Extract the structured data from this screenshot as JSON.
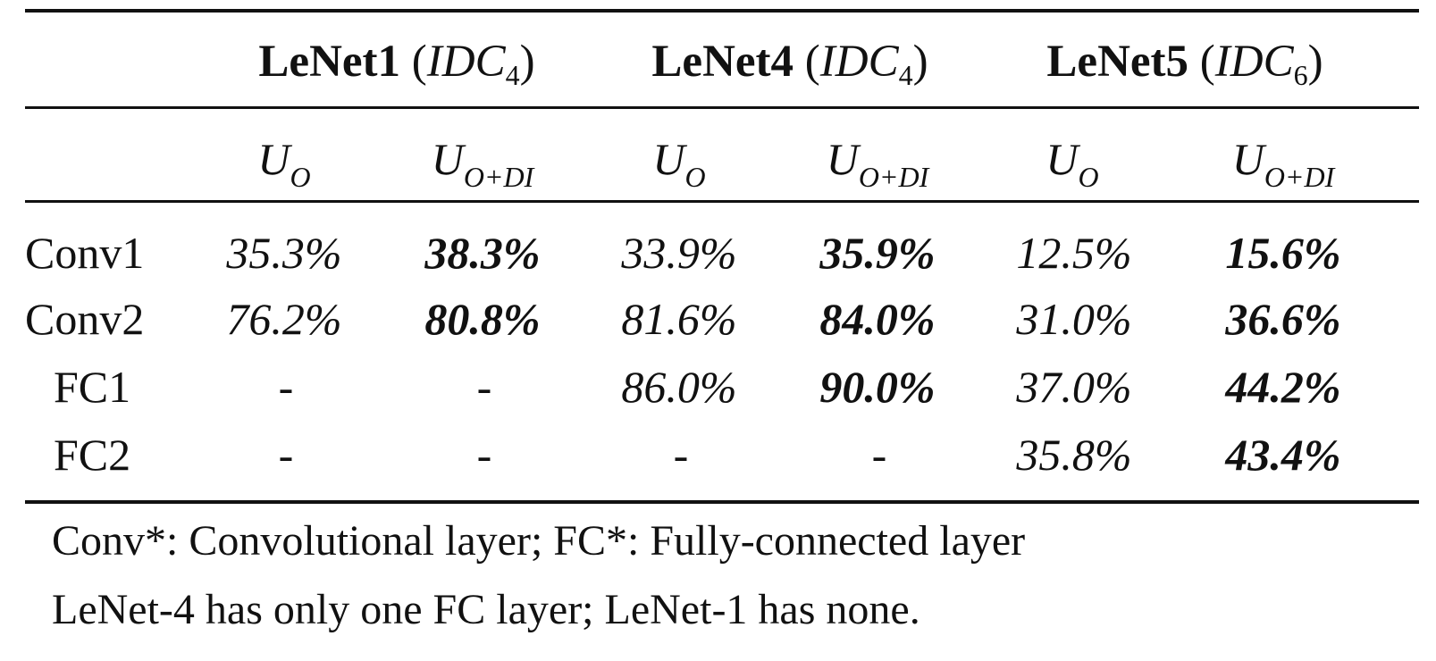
{
  "groups": [
    {
      "model": "LeNet1",
      "open": " (",
      "idc": "IDC",
      "idc_sub": "4",
      "close": ")"
    },
    {
      "model": "LeNet4",
      "open": " (",
      "idc": "IDC",
      "idc_sub": "4",
      "close": ")"
    },
    {
      "model": "LeNet5",
      "open": " (",
      "idc": "IDC",
      "idc_sub": "6",
      "close": ")"
    }
  ],
  "subheaders": [
    {
      "base": "U",
      "sub": "O"
    },
    {
      "base": "U",
      "sub": "O+DI"
    },
    {
      "base": "U",
      "sub": "O"
    },
    {
      "base": "U",
      "sub": "O+DI"
    },
    {
      "base": "U",
      "sub": "O"
    },
    {
      "base": "U",
      "sub": "O+DI"
    }
  ],
  "rows": [
    {
      "label": "Conv1",
      "cells": [
        "35.3%",
        "38.3%",
        "33.9%",
        "35.9%",
        "12.5%",
        "15.6%"
      ]
    },
    {
      "label": "Conv2",
      "cells": [
        "76.2%",
        "80.8%",
        "81.6%",
        "84.0%",
        "31.0%",
        "36.6%"
      ]
    },
    {
      "label": "FC1",
      "cells": [
        "-",
        "-",
        "86.0%",
        "90.0%",
        "37.0%",
        "44.2%"
      ]
    },
    {
      "label": "FC2",
      "cells": [
        "-",
        "-",
        "-",
        "-",
        "35.8%",
        "43.4%"
      ]
    }
  ],
  "notes": [
    "Conv*: Convolutional layer; FC*: Fully-connected layer",
    "LeNet-4 has only one FC layer; LeNet-1 has none."
  ]
}
